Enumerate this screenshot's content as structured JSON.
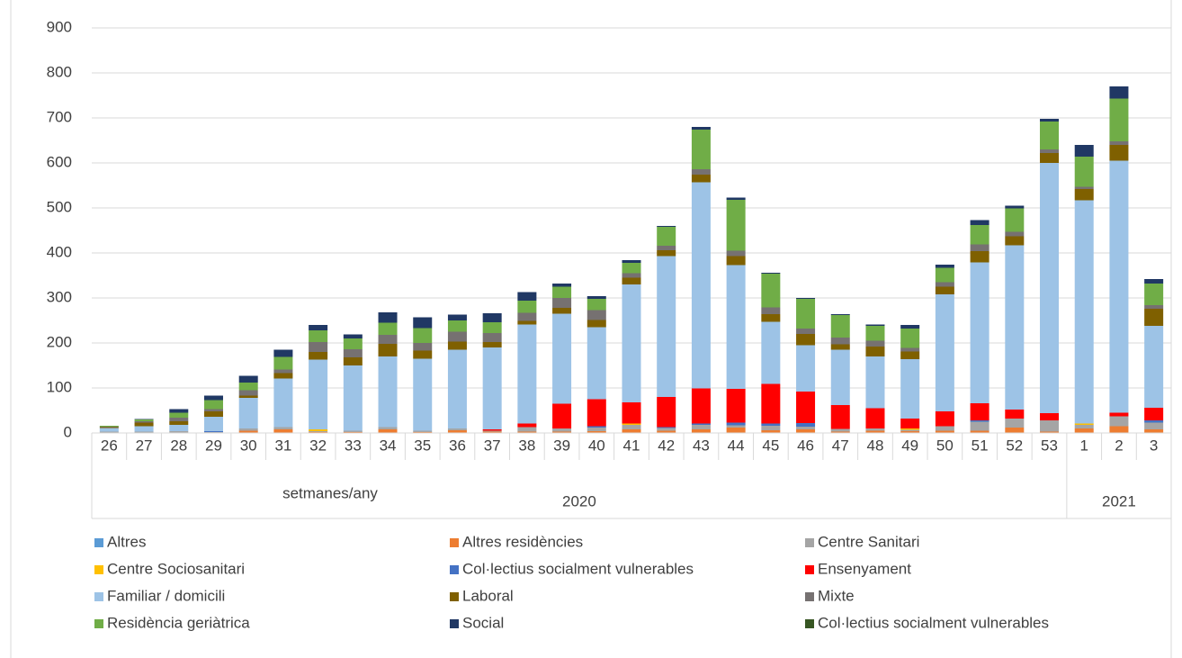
{
  "chart_data": {
    "type": "stacked_bar",
    "xlabel": "setmanes/any",
    "categories": [
      "26",
      "27",
      "28",
      "29",
      "30",
      "31",
      "32",
      "33",
      "34",
      "35",
      "36",
      "37",
      "38",
      "39",
      "40",
      "41",
      "42",
      "43",
      "44",
      "45",
      "46",
      "47",
      "48",
      "49",
      "50",
      "51",
      "52",
      "53",
      "1",
      "2",
      "3"
    ],
    "x_groups": [
      "2020",
      "2021"
    ],
    "ylim": [
      0,
      900
    ],
    "yticks": [
      0,
      100,
      200,
      300,
      400,
      500,
      600,
      700,
      800,
      900
    ],
    "grid": true,
    "series": [
      {
        "name": "Altres",
        "color": "#5b9bd5",
        "values": [
          0,
          0,
          0,
          0,
          0,
          0,
          0,
          0,
          0,
          0,
          0,
          0,
          0,
          0,
          0,
          0,
          0,
          0,
          0,
          0,
          0,
          0,
          0,
          0,
          0,
          0,
          0,
          0,
          0,
          0,
          0
        ]
      },
      {
        "name": "Altres residències",
        "color": "#ed7d31",
        "values": [
          1,
          1,
          1,
          1,
          5,
          8,
          2,
          2,
          8,
          2,
          6,
          3,
          3,
          3,
          4,
          8,
          5,
          8,
          12,
          6,
          8,
          3,
          5,
          4,
          5,
          5,
          12,
          3,
          10,
          15,
          8
        ]
      },
      {
        "name": "Centre Sanitari",
        "color": "#a5a5a5",
        "values": [
          2,
          2,
          3,
          1,
          5,
          5,
          2,
          3,
          5,
          3,
          4,
          2,
          10,
          7,
          8,
          10,
          6,
          10,
          5,
          10,
          6,
          6,
          5,
          3,
          10,
          20,
          20,
          25,
          8,
          22,
          15
        ]
      },
      {
        "name": "Centre Sociosanitari",
        "color": "#ffc000",
        "values": [
          0,
          0,
          0,
          0,
          0,
          0,
          4,
          0,
          0,
          0,
          0,
          0,
          0,
          0,
          0,
          3,
          0,
          0,
          0,
          0,
          0,
          0,
          0,
          3,
          0,
          0,
          0,
          0,
          3,
          0,
          0
        ]
      },
      {
        "name": "Col·lectius socialment vulnerables",
        "color": "#4472c4",
        "values": [
          0,
          0,
          0,
          2,
          0,
          0,
          0,
          0,
          0,
          0,
          0,
          0,
          0,
          0,
          3,
          0,
          2,
          3,
          6,
          5,
          8,
          0,
          0,
          0,
          0,
          3,
          0,
          0,
          0,
          0,
          5
        ]
      },
      {
        "name": "Ensenyament",
        "color": "#ff0000",
        "values": [
          0,
          0,
          0,
          0,
          0,
          0,
          0,
          0,
          0,
          0,
          0,
          3,
          8,
          55,
          60,
          47,
          67,
          78,
          75,
          88,
          70,
          53,
          45,
          22,
          33,
          38,
          20,
          16,
          0,
          8,
          28
        ]
      },
      {
        "name": "Familiar / domicili",
        "color": "#9dc3e6",
        "values": [
          8,
          12,
          14,
          32,
          68,
          108,
          155,
          145,
          157,
          160,
          175,
          182,
          220,
          200,
          160,
          262,
          313,
          458,
          275,
          138,
          103,
          123,
          115,
          132,
          260,
          313,
          365,
          556,
          496,
          560,
          182
        ]
      },
      {
        "name": "Laboral",
        "color": "#7f6000",
        "values": [
          2,
          8,
          8,
          12,
          5,
          12,
          17,
          18,
          28,
          18,
          18,
          12,
          8,
          13,
          16,
          15,
          13,
          17,
          20,
          17,
          25,
          12,
          22,
          17,
          17,
          25,
          20,
          22,
          25,
          35,
          38
        ]
      },
      {
        "name": "Mixte",
        "color": "#767171",
        "values": [
          1,
          3,
          8,
          5,
          12,
          8,
          22,
          18,
          20,
          17,
          22,
          20,
          18,
          22,
          22,
          10,
          10,
          12,
          12,
          15,
          12,
          15,
          13,
          8,
          10,
          15,
          10,
          8,
          5,
          8,
          8
        ]
      },
      {
        "name": "Residència geriàtrica",
        "color": "#70ad47",
        "values": [
          2,
          4,
          11,
          20,
          17,
          28,
          26,
          24,
          27,
          33,
          25,
          24,
          27,
          25,
          25,
          23,
          42,
          88,
          113,
          75,
          66,
          50,
          33,
          43,
          32,
          43,
          52,
          62,
          67,
          95,
          48
        ]
      },
      {
        "name": "Social",
        "color": "#203864",
        "values": [
          0,
          1,
          8,
          10,
          15,
          16,
          12,
          9,
          23,
          24,
          13,
          20,
          19,
          7,
          6,
          6,
          2,
          6,
          5,
          2,
          2,
          2,
          3,
          8,
          7,
          11,
          6,
          6,
          26,
          27,
          10
        ]
      },
      {
        "name": "Col·lectius socialment vulnerables",
        "color": "#375623",
        "values": [
          0,
          0,
          0,
          0,
          0,
          0,
          0,
          0,
          0,
          0,
          0,
          0,
          0,
          0,
          0,
          0,
          0,
          0,
          0,
          0,
          0,
          0,
          0,
          0,
          0,
          0,
          0,
          0,
          0,
          0,
          0
        ]
      }
    ]
  }
}
